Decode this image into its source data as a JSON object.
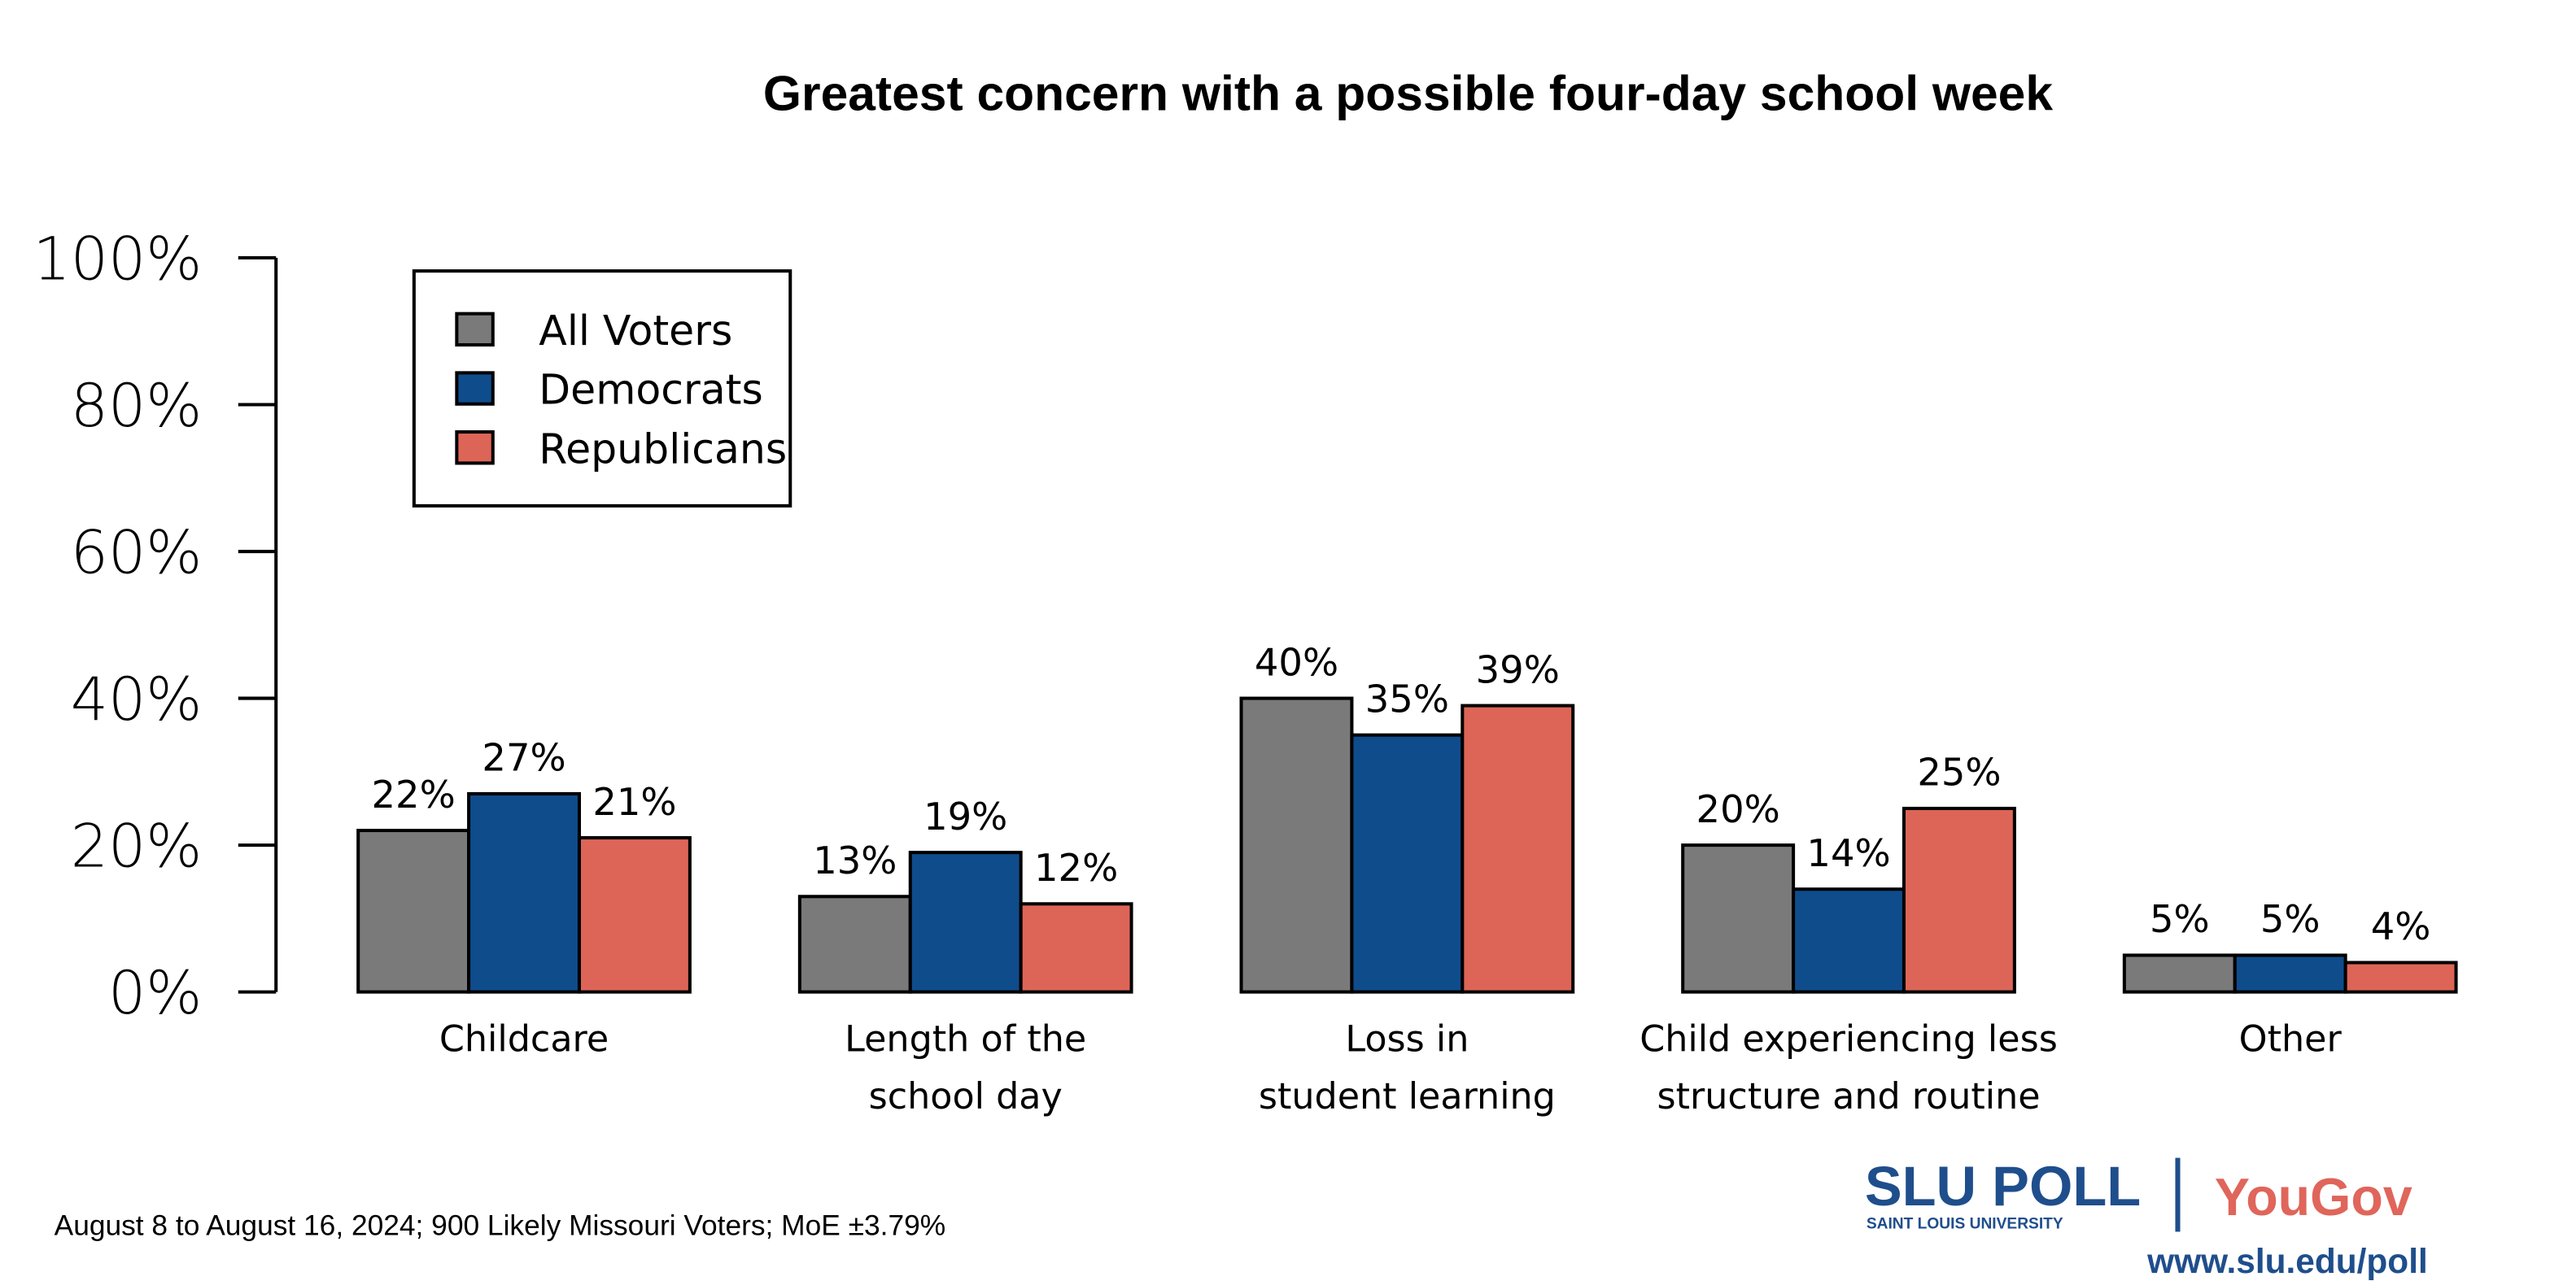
{
  "chart_data": {
    "type": "bar",
    "title": "Greatest concern with a possible four-day school week",
    "xlabel": "",
    "ylabel": "",
    "ylim": [
      0,
      100
    ],
    "yticks": [
      "0%",
      "20%",
      "40%",
      "60%",
      "80%",
      "100%"
    ],
    "ytick_values": [
      0,
      20,
      40,
      60,
      80,
      100
    ],
    "grid": false,
    "legend_position": "top-left",
    "categories": [
      [
        "Childcare"
      ],
      [
        "Length of the",
        "school day"
      ],
      [
        "Loss in",
        "student learning"
      ],
      [
        "Child experiencing less",
        "structure and routine"
      ],
      [
        "Other"
      ]
    ],
    "series": [
      {
        "name": "All Voters",
        "color": "#7a7a7a",
        "values": [
          22,
          13,
          40,
          20,
          5
        ],
        "labels": [
          "22%",
          "13%",
          "40%",
          "20%",
          "5%"
        ]
      },
      {
        "name": "Democrats",
        "color": "#0f4c8c",
        "values": [
          27,
          19,
          35,
          14,
          5
        ],
        "labels": [
          "27%",
          "19%",
          "35%",
          "14%",
          "5%"
        ]
      },
      {
        "name": "Republicans",
        "color": "#dd6557",
        "values": [
          21,
          12,
          39,
          25,
          4
        ],
        "labels": [
          "21%",
          "12%",
          "39%",
          "25%",
          "4%"
        ]
      }
    ]
  },
  "footer": {
    "note": "August 8 to August 16, 2024; 900 Likely Missouri Voters; MoE ±3.79%",
    "logo_slu": "SLU POLL",
    "logo_slu_sub": "SAINT LOUIS UNIVERSITY",
    "logo_yougov": "YouGov",
    "url": "www.slu.edu/poll",
    "brand_blue": "#1f4e8c",
    "brand_red": "#e0655a"
  }
}
